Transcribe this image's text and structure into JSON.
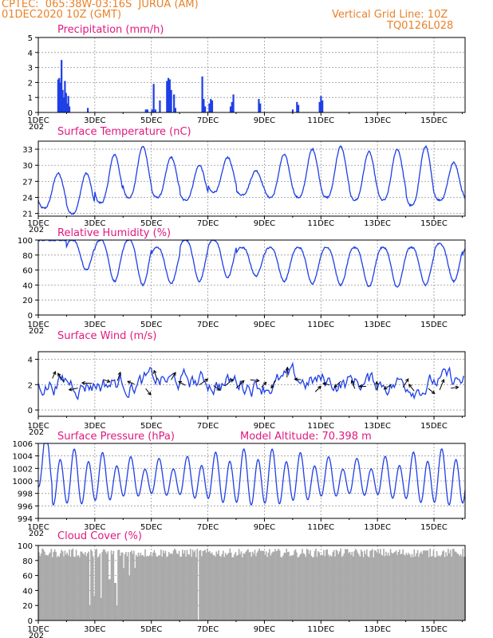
{
  "header": {
    "line1": "CPTEC:  065:38W-03:16S  JURUA (AM)",
    "line2": "01DEC2020 10Z (GMT)",
    "grid_note": "Vertical Grid Line: 10Z",
    "code": "TQ0126L028"
  },
  "colors": {
    "header": "#e8822a",
    "title": "#e0197f",
    "series": "#1f3fe6",
    "cloud": "#aaaaaa"
  },
  "x_axis": {
    "tick_labels": [
      "1DEC",
      "3DEC",
      "5DEC",
      "7DEC",
      "9DEC",
      "11DEC",
      "13DEC",
      "15DEC"
    ],
    "tick_days": [
      1,
      3,
      5,
      7,
      9,
      11,
      13,
      15
    ],
    "clipped_year_label": "202",
    "range_days": [
      1,
      16.1
    ]
  },
  "chart_data": [
    {
      "type": "bar",
      "title": "Precipitation  (mm/h)",
      "ylim": [
        0,
        5
      ],
      "yticks": [
        0,
        1,
        2,
        3,
        4,
        5
      ],
      "bars": [
        {
          "x": 1.7,
          "y": 2.2
        },
        {
          "x": 1.74,
          "y": 2.3
        },
        {
          "x": 1.78,
          "y": 2.0
        },
        {
          "x": 1.82,
          "y": 3.5
        },
        {
          "x": 1.86,
          "y": 1.5
        },
        {
          "x": 1.9,
          "y": 1.0
        },
        {
          "x": 1.94,
          "y": 2.1
        },
        {
          "x": 1.98,
          "y": 1.3
        },
        {
          "x": 2.02,
          "y": 0.6
        },
        {
          "x": 2.06,
          "y": 1.1
        },
        {
          "x": 2.1,
          "y": 0.4
        },
        {
          "x": 2.75,
          "y": 0.3
        },
        {
          "x": 4.8,
          "y": 0.2
        },
        {
          "x": 4.86,
          "y": 0.2
        },
        {
          "x": 5.02,
          "y": 0.2
        },
        {
          "x": 5.08,
          "y": 1.9
        },
        {
          "x": 5.14,
          "y": 0.2
        },
        {
          "x": 5.3,
          "y": 0.8
        },
        {
          "x": 5.55,
          "y": 2.1
        },
        {
          "x": 5.6,
          "y": 2.3
        },
        {
          "x": 5.65,
          "y": 2.2
        },
        {
          "x": 5.7,
          "y": 1.5
        },
        {
          "x": 5.8,
          "y": 1.2
        },
        {
          "x": 5.85,
          "y": 0.3
        },
        {
          "x": 6.8,
          "y": 2.4
        },
        {
          "x": 6.85,
          "y": 0.9
        },
        {
          "x": 6.9,
          "y": 0.4
        },
        {
          "x": 7.05,
          "y": 0.6
        },
        {
          "x": 7.1,
          "y": 0.9
        },
        {
          "x": 7.15,
          "y": 0.8
        },
        {
          "x": 7.8,
          "y": 0.4
        },
        {
          "x": 7.85,
          "y": 0.7
        },
        {
          "x": 7.9,
          "y": 1.2
        },
        {
          "x": 8.8,
          "y": 0.9
        },
        {
          "x": 8.85,
          "y": 0.6
        },
        {
          "x": 10.0,
          "y": 0.2
        },
        {
          "x": 10.15,
          "y": 0.7
        },
        {
          "x": 10.2,
          "y": 0.5
        },
        {
          "x": 10.95,
          "y": 0.7
        },
        {
          "x": 11.0,
          "y": 1.1
        },
        {
          "x": 11.05,
          "y": 0.8
        }
      ]
    },
    {
      "type": "line",
      "title": "Surface Temperature  (nC)",
      "ylim": [
        20.5,
        34.5
      ],
      "yticks": [
        21,
        24,
        27,
        30,
        33
      ],
      "min_pattern": [
        22,
        21,
        23,
        24,
        24,
        23.5,
        25,
        24.5,
        24,
        24,
        24,
        23.5,
        23.5,
        22.5,
        23.5,
        23.5
      ],
      "max_pattern": [
        28.5,
        28.5,
        32,
        33.5,
        31.5,
        30,
        31.5,
        29,
        32,
        33,
        33.5,
        32.5,
        33,
        33.5,
        30.5,
        32
      ]
    },
    {
      "type": "line",
      "title": "Relative Humidity  (%)",
      "ylim": [
        0,
        100
      ],
      "yticks": [
        0,
        20,
        40,
        60,
        80,
        100
      ],
      "min_pattern": [
        100,
        60,
        45,
        40,
        42,
        45,
        50,
        52,
        45,
        42,
        40,
        38,
        37,
        40,
        45,
        40
      ],
      "max_pattern": [
        100,
        100,
        100,
        100,
        90,
        100,
        100,
        90,
        90,
        90,
        90,
        90,
        90,
        90,
        95,
        90
      ]
    },
    {
      "type": "line",
      "title": "Surface Wind  (m/s)",
      "ylim": [
        -0.5,
        4.6
      ],
      "yticks": [
        0,
        2,
        4
      ],
      "level_min": 0.2,
      "level_max": 4.3,
      "vector_days": [
        1.5,
        1.9,
        2.4,
        2.9,
        3.3,
        3.8,
        4.4,
        4.8,
        5.2,
        5.7,
        6.2,
        6.7,
        7.2,
        7.6,
        8.0,
        8.5,
        8.9,
        9.4,
        9.8,
        10.3,
        10.8,
        11.3,
        11.7,
        12.2,
        12.6,
        13.0,
        13.5,
        13.9,
        14.3,
        14.8,
        15.2,
        15.6
      ]
    },
    {
      "type": "line",
      "title": "Surface Pressure  (hPa)",
      "annotation": "Model Altitude: 70.398 m",
      "ylim": [
        994,
        1006
      ],
      "yticks": [
        994,
        996,
        998,
        1000,
        1002,
        1004,
        1006
      ]
    },
    {
      "type": "bar",
      "title": "Cloud Cover  (%)",
      "ylim": [
        0,
        100
      ],
      "yticks": [
        0,
        20,
        40,
        60,
        80,
        100
      ],
      "typical_range": [
        84,
        96
      ],
      "dips": [
        {
          "day": 2.8,
          "value": 20
        },
        {
          "day": 2.95,
          "value": 33
        },
        {
          "day": 3.2,
          "value": 30
        },
        {
          "day": 3.5,
          "value": 55
        },
        {
          "day": 3.7,
          "value": 50
        },
        {
          "day": 3.75,
          "value": 20
        },
        {
          "day": 4.0,
          "value": 70
        },
        {
          "day": 4.2,
          "value": 60
        },
        {
          "day": 4.4,
          "value": 70
        },
        {
          "day": 6.65,
          "value": 0
        }
      ]
    }
  ]
}
